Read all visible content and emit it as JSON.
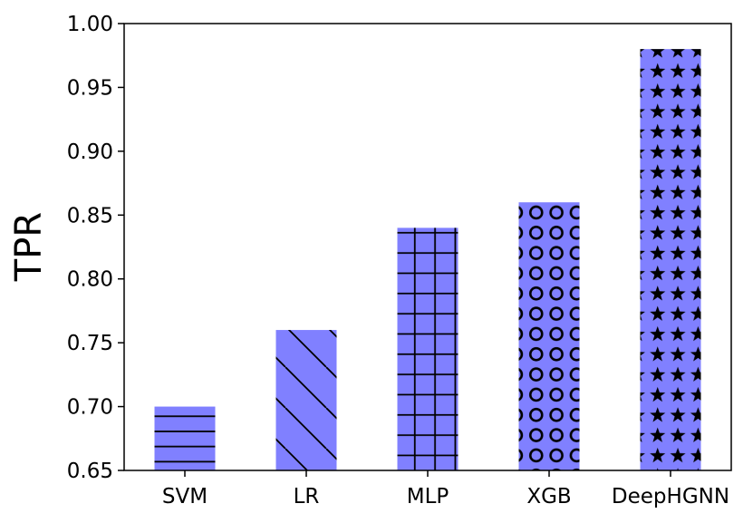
{
  "chart_data": {
    "type": "bar",
    "categories": [
      "SVM",
      "LR",
      "MLP",
      "XGB",
      "DeepHGNN"
    ],
    "values": [
      0.7,
      0.76,
      0.84,
      0.86,
      0.98
    ],
    "ylabel": "TPR",
    "xlabel": "",
    "title": "",
    "ylim": [
      0.65,
      1.0
    ],
    "yticks": [
      "0.65",
      "0.70",
      "0.75",
      "0.80",
      "0.85",
      "0.90",
      "0.95",
      "1.00"
    ],
    "bar_color": "#8080ff",
    "hatches": [
      "horizontal-lines",
      "diagonal-lines",
      "grid",
      "circles",
      "stars"
    ],
    "grid": false,
    "legend": "none"
  }
}
